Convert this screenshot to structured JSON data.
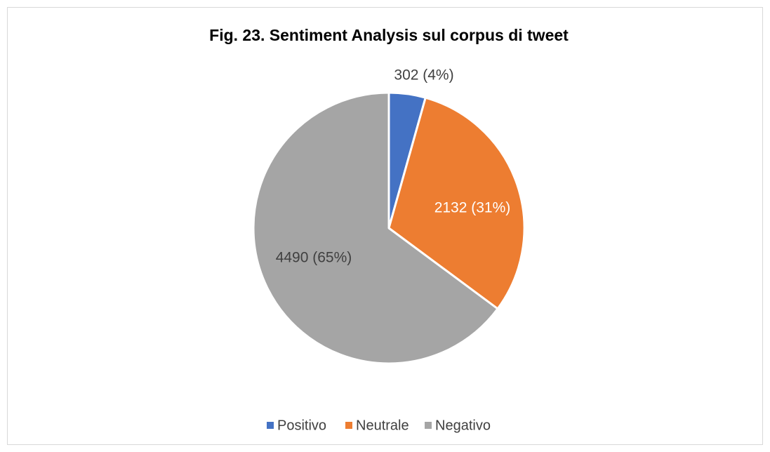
{
  "chart_data": {
    "type": "pie",
    "title": "Fig. 23. Sentiment Analysis sul corpus di tweet",
    "categories": [
      "Positivo",
      "Neutrale",
      "Negativo"
    ],
    "values": [
      302,
      2132,
      4490
    ],
    "value_labels": [
      "302 (4%)",
      "2132 (31%)",
      "4490 (65%)"
    ],
    "colors": [
      "#4472c4",
      "#ed7d31",
      "#a5a5a5"
    ],
    "legend": "bottom"
  }
}
